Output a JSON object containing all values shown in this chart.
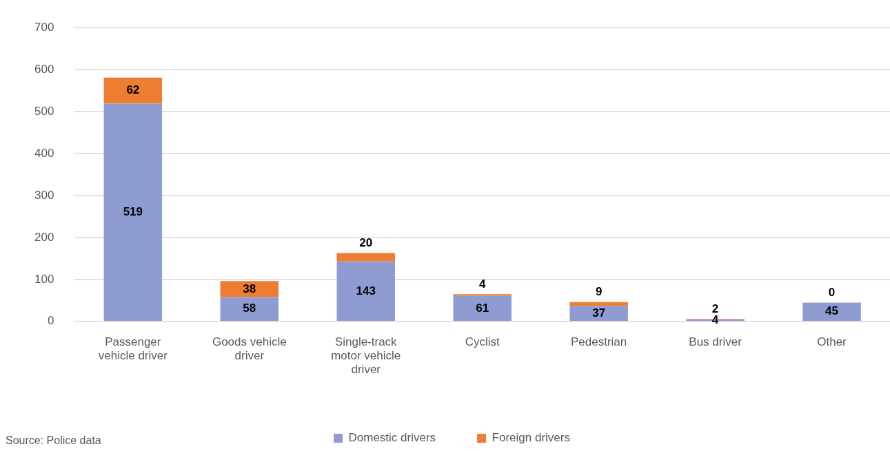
{
  "chart_data": {
    "type": "bar",
    "stacked": true,
    "categories": [
      "Passenger vehicle driver",
      "Goods vehicle driver",
      "Single-track motor vehicle driver",
      "Cyclist",
      "Pedestrian",
      "Bus driver",
      "Other"
    ],
    "series": [
      {
        "name": "Domestic drivers",
        "color": "#8e9cd2",
        "values": [
          519,
          58,
          143,
          61,
          37,
          4,
          45
        ]
      },
      {
        "name": "Foreign drivers",
        "color": "#ed7d31",
        "values": [
          62,
          38,
          20,
          4,
          9,
          2,
          0
        ]
      }
    ],
    "ylim": [
      0,
      700
    ],
    "yticks": [
      0,
      100,
      200,
      300,
      400,
      500,
      600,
      700
    ],
    "grid": "y",
    "legend": "bottom",
    "data_labels": true,
    "annotations": [
      "Source: Police data"
    ]
  }
}
